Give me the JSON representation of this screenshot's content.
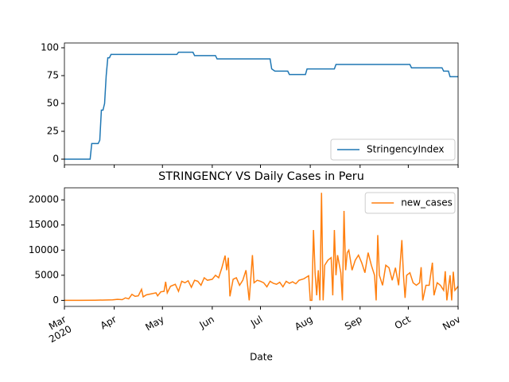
{
  "chart_data": [
    {
      "type": "line",
      "xlim": [
        "2020-03-01",
        "2020-11-01"
      ],
      "ylim": [
        -5,
        104.3
      ],
      "yticks": [
        0,
        25,
        50,
        75,
        100
      ],
      "legend": "lower right",
      "x": [
        "2020-03-01",
        "2020-03-17",
        "2020-03-18",
        "2020-03-22",
        "2020-03-23",
        "2020-03-24",
        "2020-03-25",
        "2020-03-26",
        "2020-03-27",
        "2020-03-28",
        "2020-03-29",
        "2020-03-30",
        "2020-05-10",
        "2020-05-11",
        "2020-05-20",
        "2020-05-21",
        "2020-06-03",
        "2020-06-04",
        "2020-07-07",
        "2020-07-08",
        "2020-07-10",
        "2020-07-18",
        "2020-07-19",
        "2020-07-29",
        "2020-07-30",
        "2020-08-16",
        "2020-08-17",
        "2020-10-02",
        "2020-10-03",
        "2020-10-22",
        "2020-10-23",
        "2020-10-26",
        "2020-10-27",
        "2020-11-01"
      ],
      "series": [
        {
          "name": "StringencyIndex",
          "color": "#1f77b4",
          "values": [
            0,
            0,
            14,
            14,
            17,
            44,
            44,
            50,
            75,
            91,
            91,
            94,
            94,
            96,
            96,
            93,
            93,
            90,
            90,
            81,
            79,
            79,
            76,
            76,
            81,
            81,
            85,
            85,
            82,
            82,
            79,
            79,
            74,
            74
          ]
        }
      ]
    },
    {
      "type": "line",
      "title": "STRINGENCY VS Daily Cases in Peru",
      "xlabel": "Date",
      "xlim": [
        "2020-03-01",
        "2020-11-01"
      ],
      "ylim": [
        -1200,
        22400
      ],
      "yticks": [
        0,
        5000,
        10000,
        15000,
        20000
      ],
      "legend": "upper right",
      "xticks": [
        {
          "value": "2020-03-01",
          "label": "Mar\n2020"
        },
        {
          "value": "2020-04-01",
          "label": "Apr"
        },
        {
          "value": "2020-05-01",
          "label": "May"
        },
        {
          "value": "2020-06-01",
          "label": "Jun"
        },
        {
          "value": "2020-07-01",
          "label": "Jul"
        },
        {
          "value": "2020-08-01",
          "label": "Aug"
        },
        {
          "value": "2020-09-01",
          "label": "Sep"
        },
        {
          "value": "2020-10-01",
          "label": "Oct"
        },
        {
          "value": "2020-11-01",
          "label": "Nov"
        }
      ],
      "x": [
        "2020-03-01",
        "2020-03-10",
        "2020-03-20",
        "2020-03-31",
        "2020-04-03",
        "2020-04-06",
        "2020-04-08",
        "2020-04-10",
        "2020-04-12",
        "2020-04-14",
        "2020-04-16",
        "2020-04-18",
        "2020-04-19",
        "2020-04-21",
        "2020-04-24",
        "2020-04-27",
        "2020-04-28",
        "2020-04-30",
        "2020-05-02",
        "2020-05-03",
        "2020-05-04",
        "2020-05-06",
        "2020-05-09",
        "2020-05-11",
        "2020-05-13",
        "2020-05-15",
        "2020-05-17",
        "2020-05-19",
        "2020-05-21",
        "2020-05-23",
        "2020-05-25",
        "2020-05-27",
        "2020-05-29",
        "2020-06-01",
        "2020-06-03",
        "2020-06-05",
        "2020-06-07",
        "2020-06-09",
        "2020-06-10",
        "2020-06-11",
        "2020-06-12",
        "2020-06-14",
        "2020-06-16",
        "2020-06-18",
        "2020-06-20",
        "2020-06-22",
        "2020-06-24",
        "2020-06-26",
        "2020-06-27",
        "2020-06-29",
        "2020-07-01",
        "2020-07-03",
        "2020-07-05",
        "2020-07-07",
        "2020-07-09",
        "2020-07-11",
        "2020-07-13",
        "2020-07-15",
        "2020-07-17",
        "2020-07-19",
        "2020-07-21",
        "2020-07-23",
        "2020-07-25",
        "2020-07-28",
        "2020-07-30",
        "2020-07-31",
        "2020-08-01",
        "2020-08-02",
        "2020-08-03",
        "2020-08-04",
        "2020-08-05",
        "2020-08-06",
        "2020-08-07",
        "2020-08-08",
        "2020-08-09",
        "2020-08-10",
        "2020-08-12",
        "2020-08-14",
        "2020-08-15",
        "2020-08-16",
        "2020-08-17",
        "2020-08-18",
        "2020-08-20",
        "2020-08-21",
        "2020-08-22",
        "2020-08-23",
        "2020-08-24",
        "2020-08-25",
        "2020-08-27",
        "2020-08-29",
        "2020-08-31",
        "2020-09-02",
        "2020-09-04",
        "2020-09-06",
        "2020-09-08",
        "2020-09-10",
        "2020-09-11",
        "2020-09-12",
        "2020-09-13",
        "2020-09-15",
        "2020-09-17",
        "2020-09-19",
        "2020-09-21",
        "2020-09-23",
        "2020-09-25",
        "2020-09-27",
        "2020-09-28",
        "2020-09-29",
        "2020-09-30",
        "2020-10-02",
        "2020-10-04",
        "2020-10-06",
        "2020-10-08",
        "2020-10-09",
        "2020-10-10",
        "2020-10-12",
        "2020-10-14",
        "2020-10-16",
        "2020-10-17",
        "2020-10-19",
        "2020-10-21",
        "2020-10-23",
        "2020-10-24",
        "2020-10-25",
        "2020-10-27",
        "2020-10-28",
        "2020-10-29",
        "2020-10-30",
        "2020-11-01"
      ],
      "series": [
        {
          "name": "new_cases",
          "color": "#ff7f0e",
          "values": [
            0,
            0,
            30,
            100,
            200,
            150,
            500,
            300,
            1200,
            800,
            900,
            2200,
            700,
            1100,
            1300,
            1500,
            900,
            1700,
            1800,
            3700,
            1500,
            2800,
            3200,
            1800,
            3800,
            3500,
            3900,
            2600,
            4000,
            3800,
            3000,
            4500,
            4000,
            4200,
            5000,
            4500,
            6500,
            8900,
            6000,
            8500,
            800,
            4200,
            4500,
            3000,
            4000,
            6000,
            0,
            9000,
            3500,
            4000,
            3800,
            3500,
            2700,
            3800,
            3400,
            3200,
            3600,
            2700,
            3800,
            3400,
            3700,
            3300,
            4000,
            4300,
            4700,
            4900,
            0,
            0,
            14000,
            5500,
            1000,
            6000,
            0,
            21400,
            0,
            7000,
            8000,
            8500,
            1000,
            14000,
            5000,
            9000,
            5500,
            0,
            17800,
            6000,
            9500,
            10000,
            6000,
            8000,
            9000,
            7500,
            5500,
            9500,
            7000,
            5000,
            0,
            13000,
            5000,
            3000,
            7000,
            6500,
            4000,
            6500,
            3000,
            12000,
            5000,
            500,
            5000,
            5500,
            3500,
            3000,
            3500,
            6600,
            0,
            3000,
            3000,
            7500,
            1000,
            3500,
            3000,
            2000,
            5800,
            0,
            5000,
            0,
            5700,
            2000,
            2800
          ]
        }
      ]
    }
  ]
}
